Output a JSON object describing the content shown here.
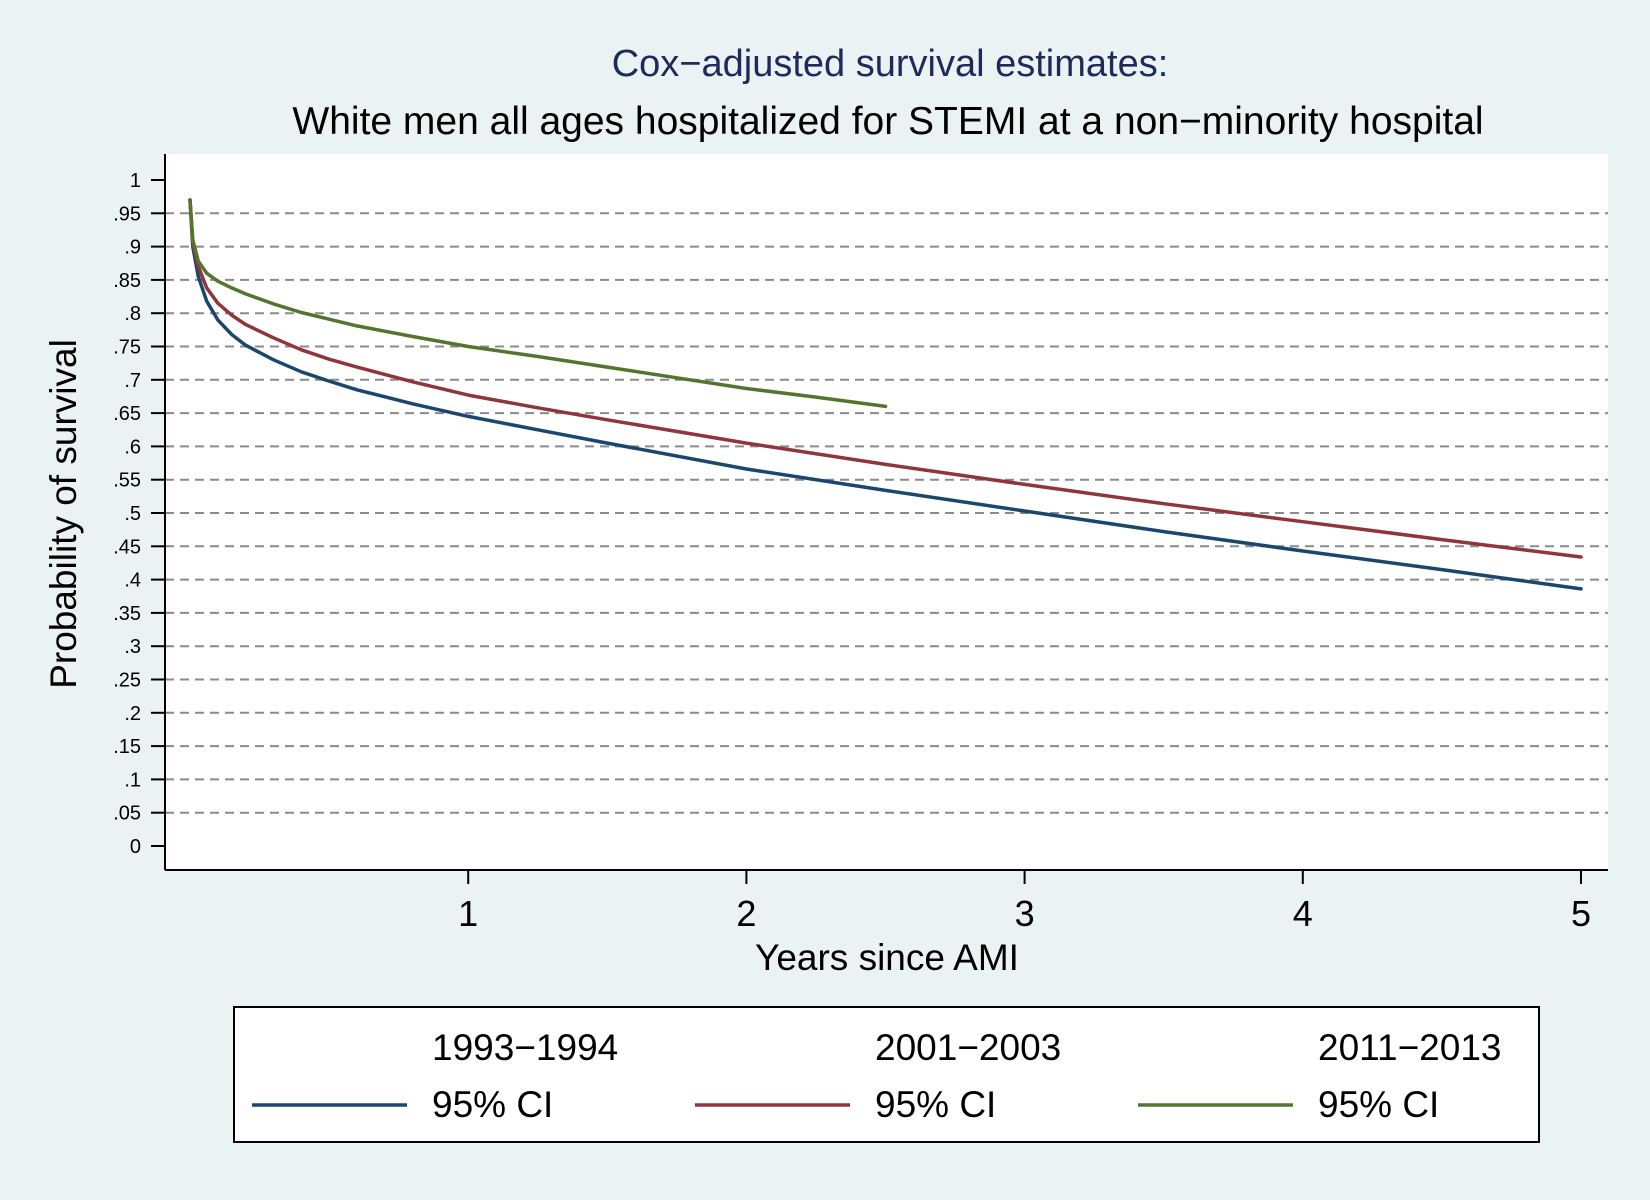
{
  "chart_data": {
    "type": "line",
    "title": "Cox−adjusted survival estimates:",
    "subtitle": "White men all ages hospitalized for STEMI at a non−minority hospital",
    "xlabel": "Years since AMI",
    "ylabel": "Probability of survival",
    "xlim": [
      0,
      5
    ],
    "ylim": [
      0,
      1
    ],
    "x_ticks": [
      {
        "value": 1,
        "label": "1"
      },
      {
        "value": 2,
        "label": "2"
      },
      {
        "value": 3,
        "label": "3"
      },
      {
        "value": 4,
        "label": "4"
      },
      {
        "value": 5,
        "label": "5"
      }
    ],
    "y_ticks": [
      {
        "value": 0,
        "label": "0"
      },
      {
        "value": 0.05,
        "label": ".05"
      },
      {
        "value": 0.1,
        "label": ".1"
      },
      {
        "value": 0.15,
        "label": ".15"
      },
      {
        "value": 0.2,
        "label": ".2"
      },
      {
        "value": 0.25,
        "label": ".25"
      },
      {
        "value": 0.3,
        "label": ".3"
      },
      {
        "value": 0.35,
        "label": ".35"
      },
      {
        "value": 0.4,
        "label": ".4"
      },
      {
        "value": 0.45,
        "label": ".45"
      },
      {
        "value": 0.5,
        "label": ".5"
      },
      {
        "value": 0.55,
        "label": ".55"
      },
      {
        "value": 0.6,
        "label": ".6"
      },
      {
        "value": 0.65,
        "label": ".65"
      },
      {
        "value": 0.7,
        "label": ".7"
      },
      {
        "value": 0.75,
        "label": ".75"
      },
      {
        "value": 0.8,
        "label": ".8"
      },
      {
        "value": 0.85,
        "label": ".85"
      },
      {
        "value": 0.9,
        "label": ".9"
      },
      {
        "value": 0.95,
        "label": ".95"
      },
      {
        "value": 1,
        "label": "1"
      }
    ],
    "grid": {
      "y": true,
      "style": "dashed"
    },
    "legend": {
      "position": "bottom",
      "columns": 3
    },
    "series": [
      {
        "name": "1993−1994",
        "legend_sub": "95% CI",
        "color": "#1a476f",
        "x": [
          0.0,
          0.01,
          0.03,
          0.06,
          0.1,
          0.15,
          0.2,
          0.3,
          0.4,
          0.5,
          0.6,
          0.8,
          1.0,
          1.25,
          1.5,
          2.0,
          2.5,
          3.0,
          3.5,
          4.0,
          4.5,
          5.0
        ],
        "y": [
          0.97,
          0.9,
          0.855,
          0.818,
          0.79,
          0.768,
          0.752,
          0.73,
          0.712,
          0.698,
          0.685,
          0.664,
          0.645,
          0.625,
          0.605,
          0.566,
          0.534,
          0.503,
          0.472,
          0.443,
          0.415,
          0.386
        ]
      },
      {
        "name": "2001−2003",
        "legend_sub": "95% CI",
        "color": "#90353b",
        "x": [
          0.0,
          0.01,
          0.03,
          0.06,
          0.1,
          0.15,
          0.2,
          0.3,
          0.4,
          0.5,
          0.6,
          0.8,
          1.0,
          1.25,
          1.5,
          2.0,
          2.5,
          3.0,
          3.5,
          4.0,
          4.5,
          5.0
        ],
        "y": [
          0.97,
          0.905,
          0.87,
          0.838,
          0.815,
          0.797,
          0.783,
          0.763,
          0.745,
          0.731,
          0.719,
          0.697,
          0.677,
          0.658,
          0.64,
          0.605,
          0.573,
          0.543,
          0.514,
          0.487,
          0.46,
          0.434
        ]
      },
      {
        "name": "2011−2013",
        "legend_sub": "95% CI",
        "color": "#55752f",
        "x": [
          0.0,
          0.01,
          0.03,
          0.06,
          0.1,
          0.15,
          0.2,
          0.3,
          0.4,
          0.5,
          0.6,
          0.8,
          1.0,
          1.25,
          1.5,
          1.75,
          2.0,
          2.25,
          2.5
        ],
        "y": [
          0.97,
          0.91,
          0.878,
          0.86,
          0.848,
          0.838,
          0.829,
          0.814,
          0.801,
          0.791,
          0.781,
          0.765,
          0.75,
          0.735,
          0.719,
          0.703,
          0.687,
          0.674,
          0.66
        ]
      }
    ]
  }
}
